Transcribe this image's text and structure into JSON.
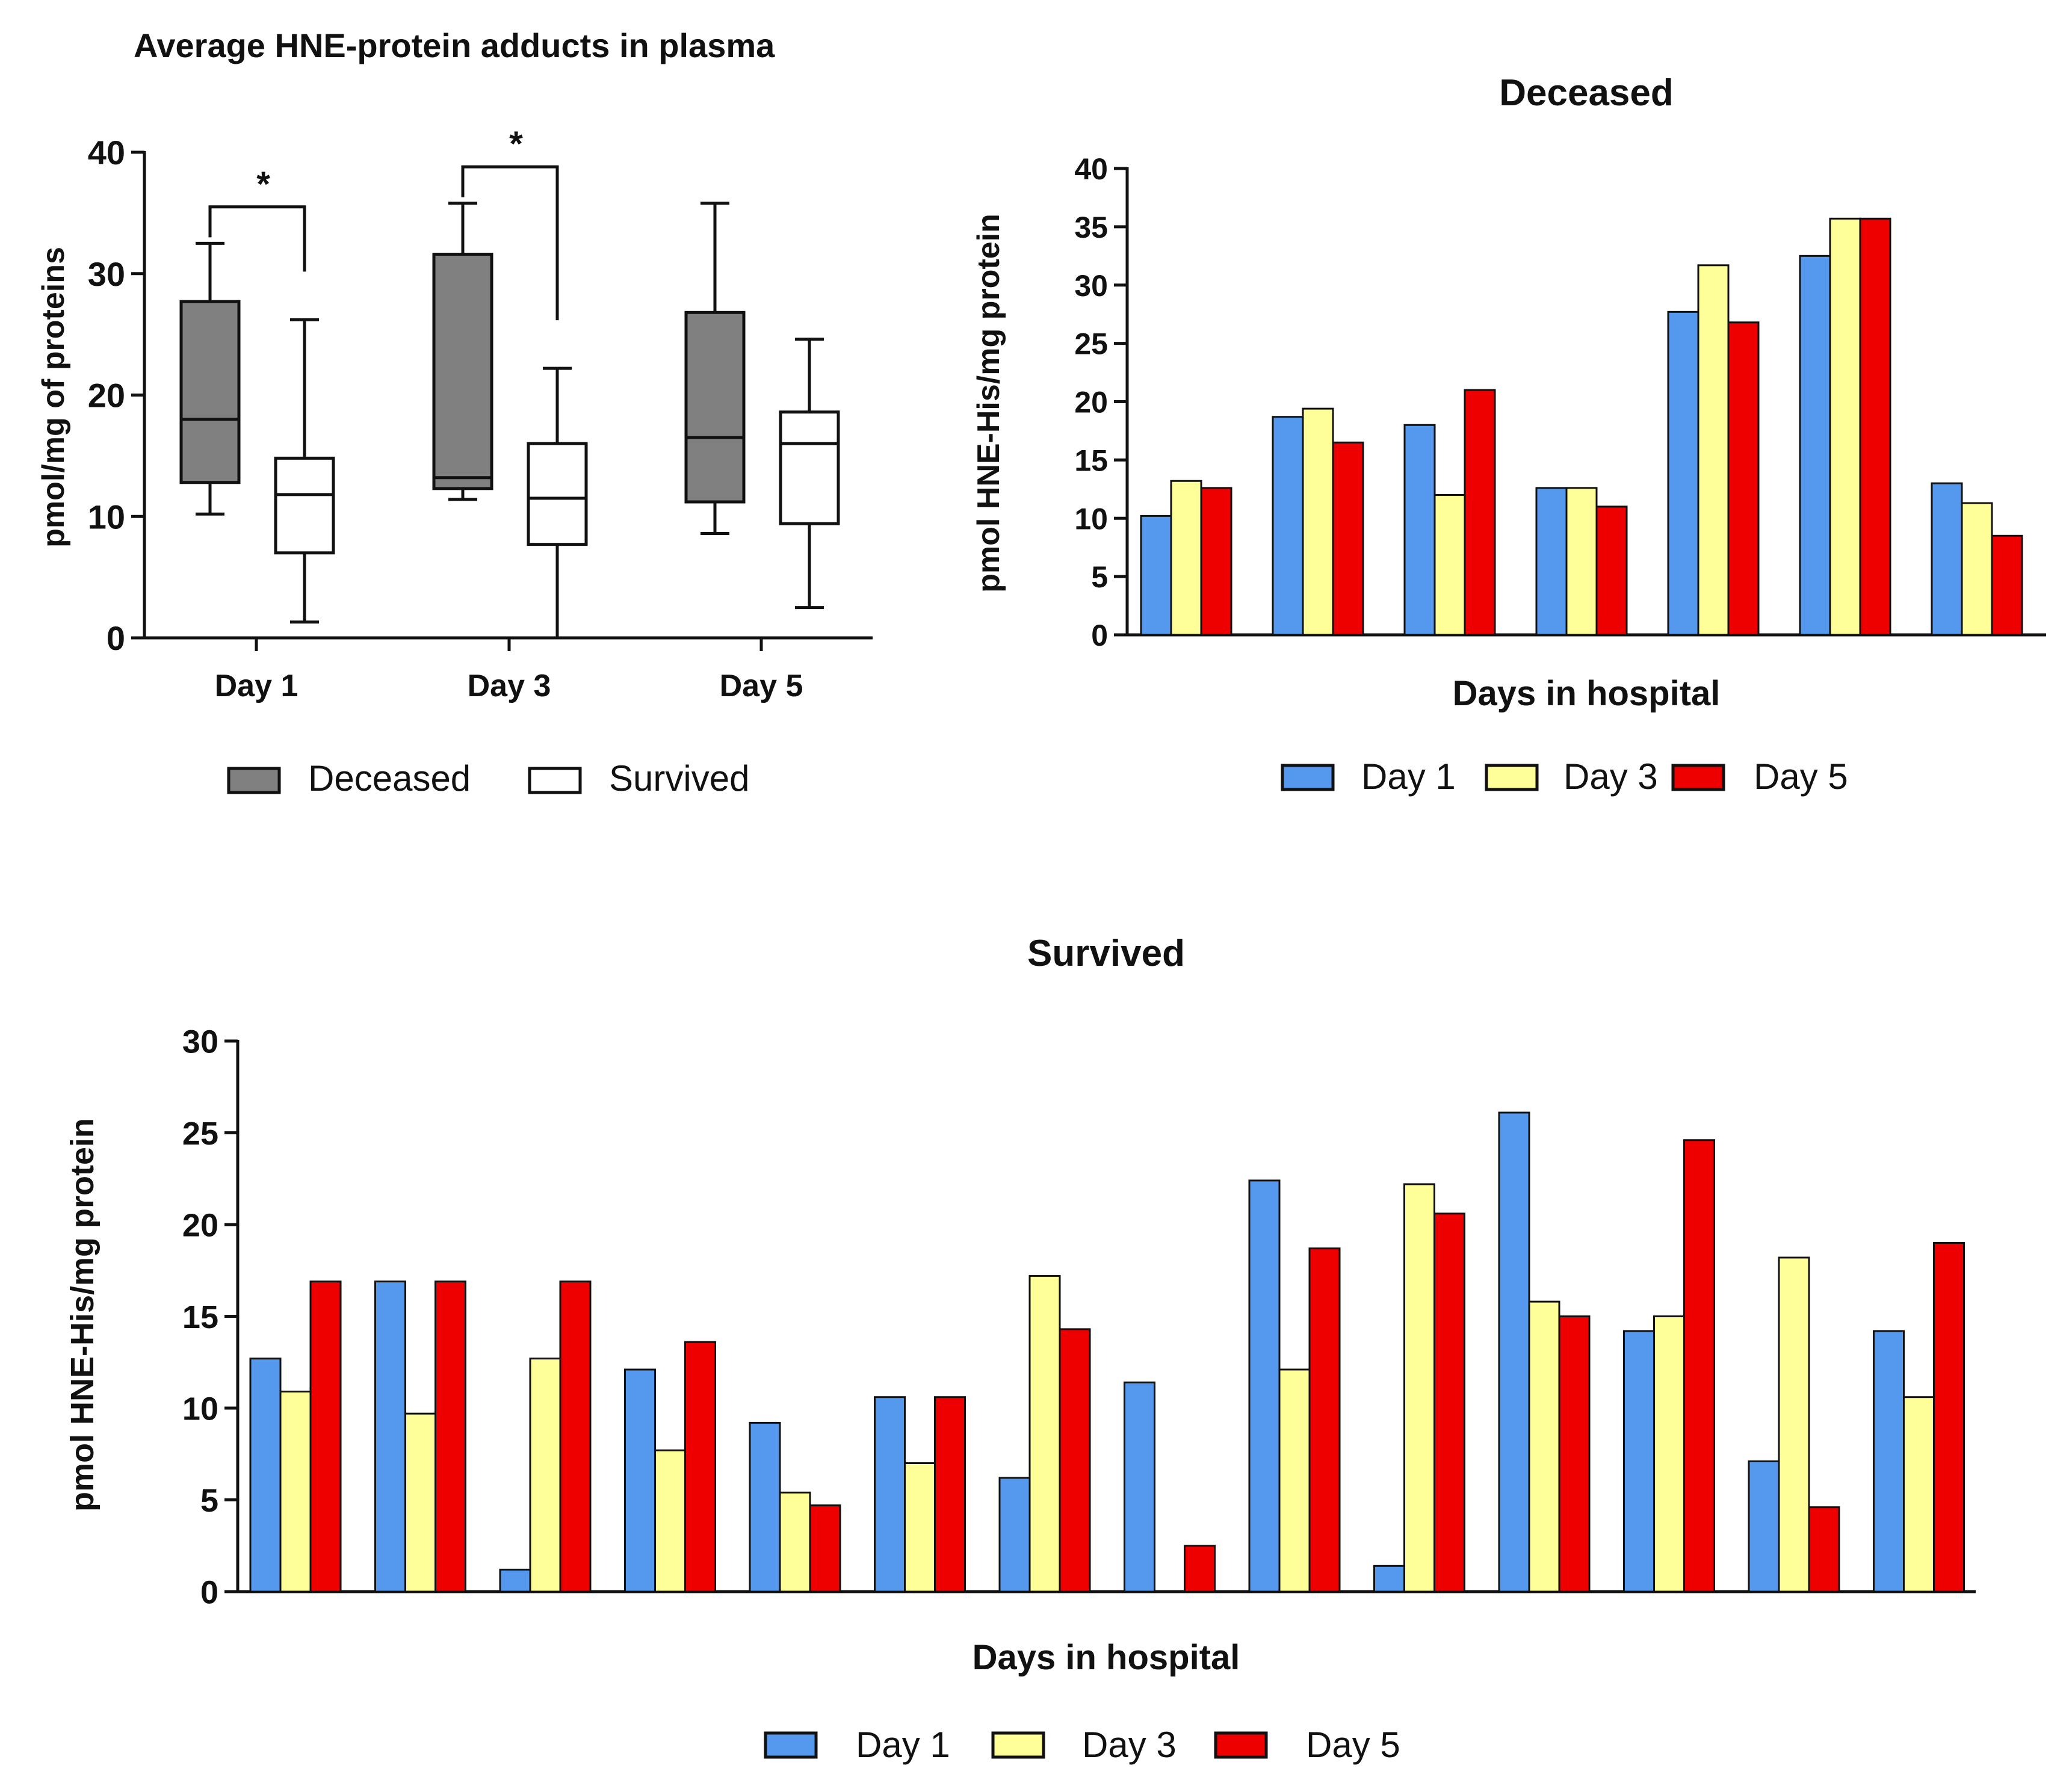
{
  "chart_data": [
    {
      "type": "box",
      "title": "Average HNE-protein adducts in plasma",
      "xlabel": "",
      "ylabel": "pmol/mg of proteins",
      "ylim": [
        0,
        40
      ],
      "yticks": [
        0,
        10,
        20,
        30,
        40
      ],
      "categories": [
        "Day 1",
        "Day 3",
        "Day 5"
      ],
      "legend": "bottom",
      "series": [
        {
          "name": "Deceased",
          "color": "#808080",
          "boxes": [
            {
              "min": 10.2,
              "q1": 12.8,
              "median": 18.0,
              "q3": 27.7,
              "max": 32.5
            },
            {
              "min": 11.4,
              "q1": 12.3,
              "median": 13.2,
              "q3": 31.6,
              "max": 35.8
            },
            {
              "min": 8.6,
              "q1": 11.2,
              "median": 16.5,
              "q3": 26.8,
              "max": 35.8
            }
          ]
        },
        {
          "name": "Survived",
          "color": "#ffffff",
          "boxes": [
            {
              "min": 1.3,
              "q1": 7.0,
              "median": 11.8,
              "q3": 14.8,
              "max": 26.2
            },
            {
              "min": 0.0,
              "q1": 7.7,
              "median": 11.5,
              "q3": 16.0,
              "max": 22.2
            },
            {
              "min": 2.5,
              "q1": 9.4,
              "median": 16.0,
              "q3": 18.6,
              "max": 24.6
            }
          ]
        }
      ],
      "significance": [
        {
          "category": "Day 1",
          "label": "*",
          "y": 35.5
        },
        {
          "category": "Day 3",
          "label": "*",
          "y": 38.8
        }
      ]
    },
    {
      "type": "bar",
      "title": "Deceased",
      "xlabel": "Days in hospital",
      "ylabel": "pmol HNE-His/mg protein",
      "ylim": [
        0,
        40
      ],
      "yticks": [
        0,
        5,
        10,
        15,
        20,
        25,
        30,
        35,
        40
      ],
      "legend": "bottom",
      "series": [
        {
          "name": "Day 1",
          "color": "#5599ee",
          "values": [
            10.2,
            18.7,
            18.0,
            12.6,
            27.7,
            32.5,
            13.0
          ]
        },
        {
          "name": "Day 3",
          "color": "#ffff99",
          "values": [
            13.2,
            19.4,
            12.0,
            12.6,
            31.7,
            35.7,
            11.3
          ]
        },
        {
          "name": "Day 5",
          "color": "#ee0000",
          "values": [
            12.6,
            16.5,
            21.0,
            11.0,
            26.8,
            35.7,
            8.5
          ]
        }
      ]
    },
    {
      "type": "bar",
      "title": "Survived",
      "xlabel": "Days in hospital",
      "ylabel": "pmol HNE-His/mg protein",
      "ylim": [
        0,
        30
      ],
      "yticks": [
        0,
        5,
        10,
        15,
        20,
        25,
        30
      ],
      "legend": "bottom",
      "series": [
        {
          "name": "Day 1",
          "color": "#5599ee",
          "values": [
            12.7,
            16.9,
            1.2,
            12.1,
            9.2,
            10.6,
            6.2,
            11.4,
            22.4,
            1.4,
            26.1,
            14.2,
            7.1,
            14.2
          ]
        },
        {
          "name": "Day 3",
          "color": "#ffff99",
          "values": [
            10.9,
            9.7,
            12.7,
            7.7,
            5.4,
            7.0,
            17.2,
            0.0,
            12.1,
            22.2,
            15.8,
            15.0,
            18.2,
            10.6
          ]
        },
        {
          "name": "Day 5",
          "color": "#ee0000",
          "values": [
            16.9,
            16.9,
            16.9,
            13.6,
            4.7,
            10.6,
            14.3,
            2.5,
            18.7,
            20.6,
            15.0,
            24.6,
            4.6,
            19.0
          ]
        }
      ]
    }
  ]
}
